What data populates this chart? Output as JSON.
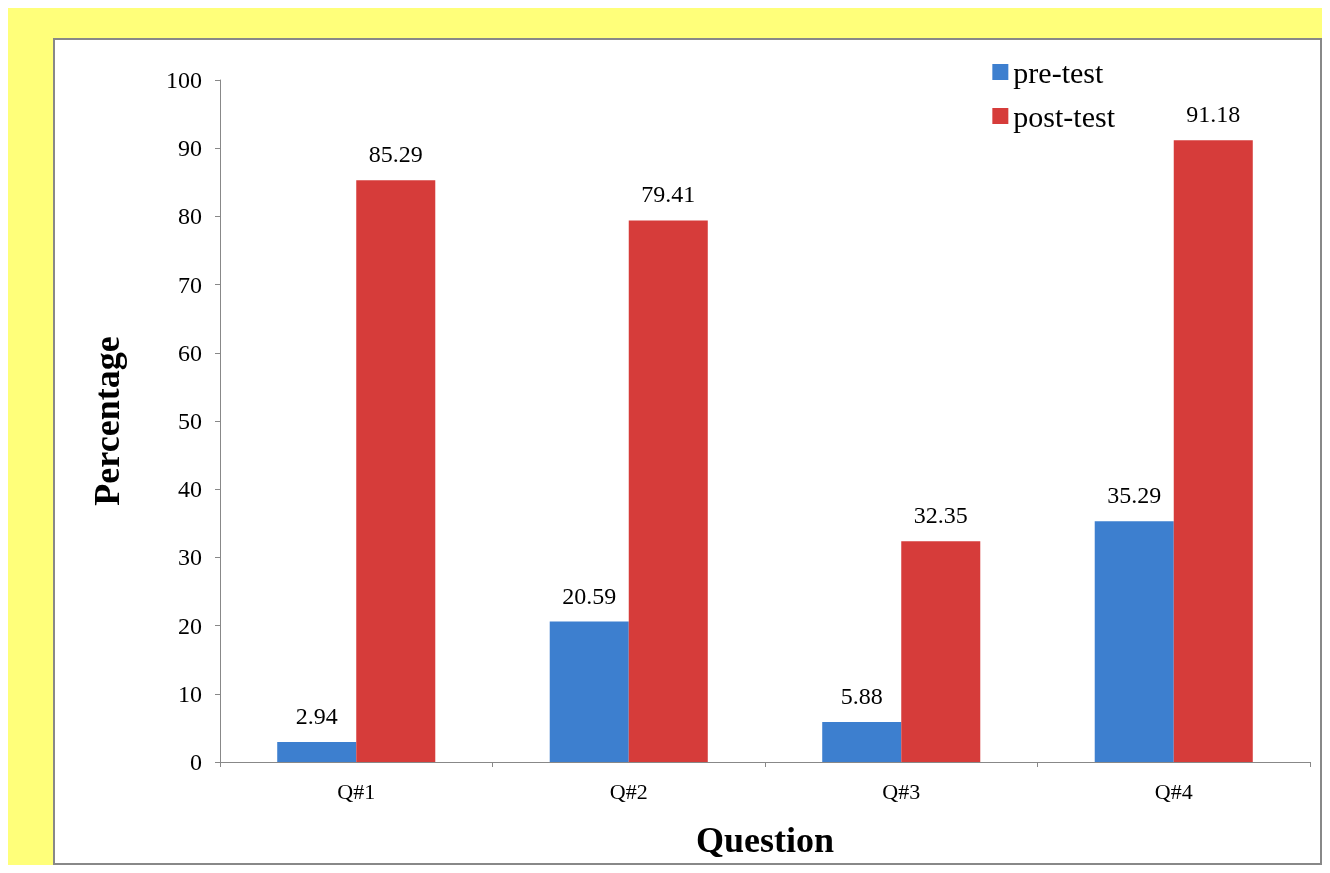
{
  "chart_data": {
    "type": "bar",
    "xlabel": "Question",
    "ylabel": "Percentage",
    "categories": [
      "Q#1",
      "Q#2",
      "Q#3",
      "Q#4"
    ],
    "series": [
      {
        "name": "pre-test",
        "color": "#3d7fcf",
        "values": [
          2.94,
          20.59,
          5.88,
          35.29
        ]
      },
      {
        "name": "post-test",
        "color": "#d63c3a",
        "values": [
          85.29,
          79.41,
          32.35,
          91.18
        ]
      }
    ],
    "ylim": [
      0,
      100
    ],
    "yticks": [
      0,
      10,
      20,
      30,
      40,
      50,
      60,
      70,
      80,
      90,
      100
    ],
    "grid": false,
    "legend": "top right",
    "data_labels": true
  }
}
